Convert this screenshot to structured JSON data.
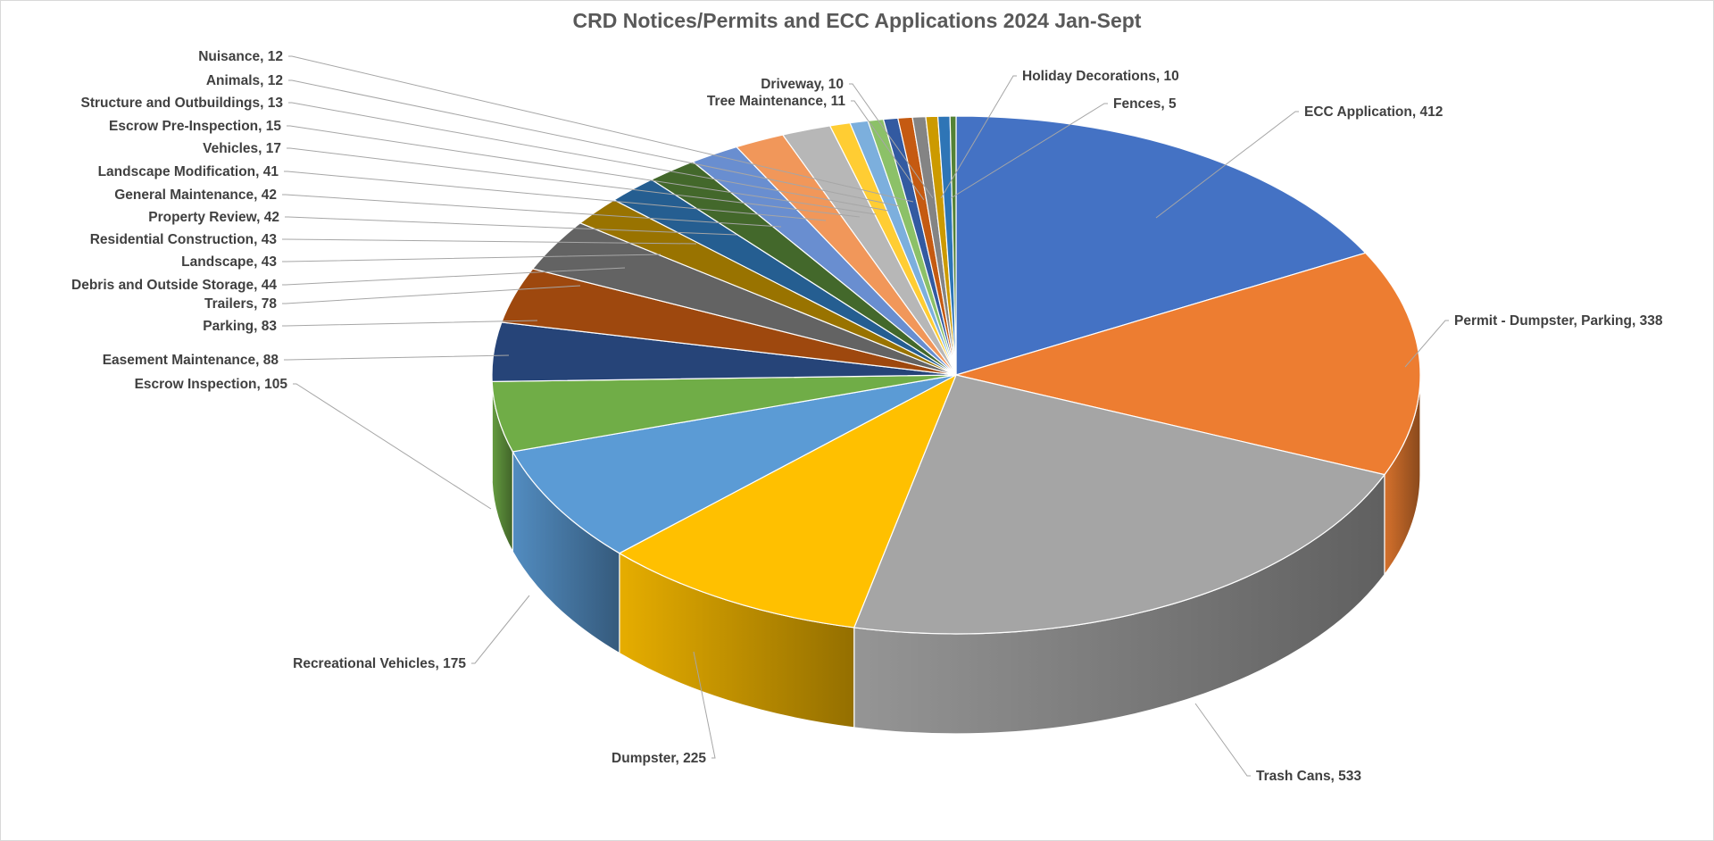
{
  "chart_data": {
    "type": "pie",
    "style": "3d",
    "title": "CRD Notices/Permits and ECC Applications 2024 Jan-Sept",
    "data_labels_show": "category, value",
    "slices": [
      {
        "name": "ECC Application",
        "value": 412,
        "label": "ECC Application, 412",
        "color": "#4472C4"
      },
      {
        "name": "Permit - Dumpster, Parking",
        "value": 338,
        "label": "Permit - Dumpster, Parking, 338",
        "color": "#ED7D31"
      },
      {
        "name": "Trash Cans",
        "value": 533,
        "label": "Trash Cans, 533",
        "color": "#A5A5A5"
      },
      {
        "name": "Dumpster",
        "value": 225,
        "label": "Dumpster, 225",
        "color": "#FFC000"
      },
      {
        "name": "Recreational Vehicles",
        "value": 175,
        "label": "Recreational Vehicles, 175",
        "color": "#5B9BD5"
      },
      {
        "name": "Escrow Inspection",
        "value": 105,
        "label": "Escrow Inspection, 105",
        "color": "#70AD47"
      },
      {
        "name": "Easement Maintenance",
        "value": 88,
        "label": "Easement Maintenance, 88",
        "color": "#264478"
      },
      {
        "name": "Parking",
        "value": 83,
        "label": "Parking, 83",
        "color": "#9E480E"
      },
      {
        "name": "Trailers",
        "value": 78,
        "label": "Trailers, 78",
        "color": "#636363"
      },
      {
        "name": "Debris and Outside Storage",
        "value": 44,
        "label": "Debris and Outside Storage, 44",
        "color": "#997300"
      },
      {
        "name": "Landscape",
        "value": 43,
        "label": "Landscape, 43",
        "color": "#255E91"
      },
      {
        "name": "Residential Construction",
        "value": 43,
        "label": "Residential Construction, 43",
        "color": "#43682B"
      },
      {
        "name": "Property Review",
        "value": 42,
        "label": "Property Review, 42",
        "color": "#698ED0"
      },
      {
        "name": "General Maintenance",
        "value": 42,
        "label": "General Maintenance, 42",
        "color": "#F1975A"
      },
      {
        "name": "Landscape Modification",
        "value": 41,
        "label": "Landscape Modification, 41",
        "color": "#B7B7B7"
      },
      {
        "name": "Vehicles",
        "value": 17,
        "label": "Vehicles, 17",
        "color": "#FFCD33"
      },
      {
        "name": "Escrow Pre-Inspection",
        "value": 15,
        "label": "Escrow Pre-Inspection, 15",
        "color": "#7CAFDD"
      },
      {
        "name": "Structure and Outbuildings",
        "value": 13,
        "label": "Structure and Outbuildings, 13",
        "color": "#8CC168"
      },
      {
        "name": "Animals",
        "value": 12,
        "label": "Animals, 12",
        "color": "#335AA1"
      },
      {
        "name": "Nuisance",
        "value": 12,
        "label": "Nuisance, 12",
        "color": "#C55A11"
      },
      {
        "name": "Tree Maintenance",
        "value": 11,
        "label": "Tree Maintenance, 11",
        "color": "#848484"
      },
      {
        "name": "Driveway",
        "value": 10,
        "label": "Driveway, 10",
        "color": "#CC9A00"
      },
      {
        "name": "Holiday Decorations",
        "value": 10,
        "label": "Holiday Decorations, 10",
        "color": "#2E75B6"
      },
      {
        "name": "Fences",
        "value": 5,
        "label": "Fences, 5",
        "color": "#548235"
      }
    ]
  }
}
